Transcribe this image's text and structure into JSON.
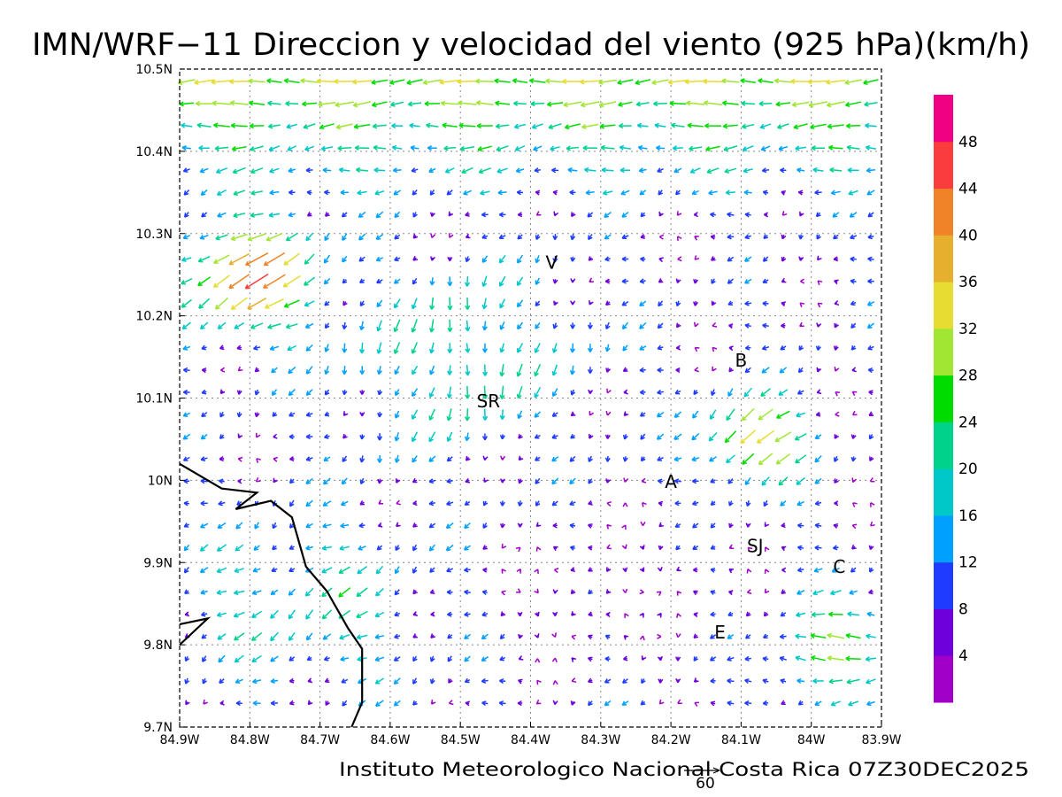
{
  "chart_data": {
    "type": "vector_field",
    "title": "IMN/WRF−11 Direccion y velocidad del viento (925 hPa)(km/h)",
    "footer": "Instituto Meteorologico Nacional Costa Rica 07Z30DEC2025",
    "reference_vector": {
      "label": "60",
      "speed": 60
    },
    "xaxis": {
      "ticks": [
        -84.9,
        -84.8,
        -84.7,
        -84.6,
        -84.5,
        -84.4,
        -84.3,
        -84.2,
        -84.1,
        -84.0,
        -83.9
      ],
      "tick_labels": [
        "84.9W",
        "84.8W",
        "84.7W",
        "84.6W",
        "84.5W",
        "84.4W",
        "84.3W",
        "84.2W",
        "84.1W",
        "84W",
        "83.9W"
      ],
      "range": [
        -84.9,
        -83.9
      ]
    },
    "yaxis": {
      "ticks": [
        9.7,
        9.8,
        9.9,
        10.0,
        10.1,
        10.2,
        10.3,
        10.4,
        10.5
      ],
      "tick_labels": [
        "9.7N",
        "9.8N",
        "9.9N",
        "10N",
        "10.1N",
        "10.2N",
        "10.3N",
        "10.4N",
        "10.5N"
      ],
      "range": [
        9.7,
        10.5
      ]
    },
    "grid": true,
    "colorbar": {
      "bounds": [
        0,
        4,
        8,
        12,
        16,
        20,
        24,
        28,
        32,
        36,
        40,
        44,
        48,
        52
      ],
      "labels": [
        "4",
        "8",
        "12",
        "16",
        "20",
        "24",
        "28",
        "32",
        "36",
        "40",
        "44",
        "48"
      ],
      "colors": [
        "#a000c8",
        "#6e00dc",
        "#1e3cff",
        "#00a0ff",
        "#00c8c8",
        "#00d28c",
        "#00dc00",
        "#a0e632",
        "#e6dc32",
        "#e6af2d",
        "#f08228",
        "#fa3c3c",
        "#f00082"
      ]
    },
    "station_labels": [
      {
        "text": "V",
        "lon": -84.37,
        "lat": 10.265
      },
      {
        "text": "SR",
        "lon": -84.46,
        "lat": 10.096
      },
      {
        "text": "B",
        "lon": -84.1,
        "lat": 10.146
      },
      {
        "text": "A",
        "lon": -84.2,
        "lat": 9.998
      },
      {
        "text": "SJ",
        "lon": -84.08,
        "lat": 9.92
      },
      {
        "text": "C",
        "lon": -83.96,
        "lat": 9.895
      },
      {
        "text": "E",
        "lon": -84.13,
        "lat": 9.815
      }
    ],
    "coastline": [
      [
        -84.9,
        10.02
      ],
      [
        -84.84,
        9.99
      ],
      [
        -84.79,
        9.985
      ],
      [
        -84.82,
        9.965
      ],
      [
        -84.77,
        9.975
      ],
      [
        -84.74,
        9.955
      ],
      [
        -84.72,
        9.895
      ],
      [
        -84.69,
        9.865
      ],
      [
        -84.66,
        9.82
      ],
      [
        -84.64,
        9.795
      ],
      [
        -84.64,
        9.73
      ],
      [
        -84.655,
        9.7
      ]
    ],
    "coastline_2": [
      [
        -84.9,
        9.825
      ],
      [
        -84.86,
        9.832
      ],
      [
        -84.9,
        9.8
      ]
    ],
    "wind_field": {
      "lon_start": -84.89,
      "lon_step": 0.025,
      "n_lon": 40,
      "lat_start": 10.485,
      "lat_step": -0.027,
      "n_lat": 29,
      "pattern": "northeasterly trade flow with stronger winds along the northern border and northwest slopes, weak variable winds over the central valleys"
    }
  }
}
